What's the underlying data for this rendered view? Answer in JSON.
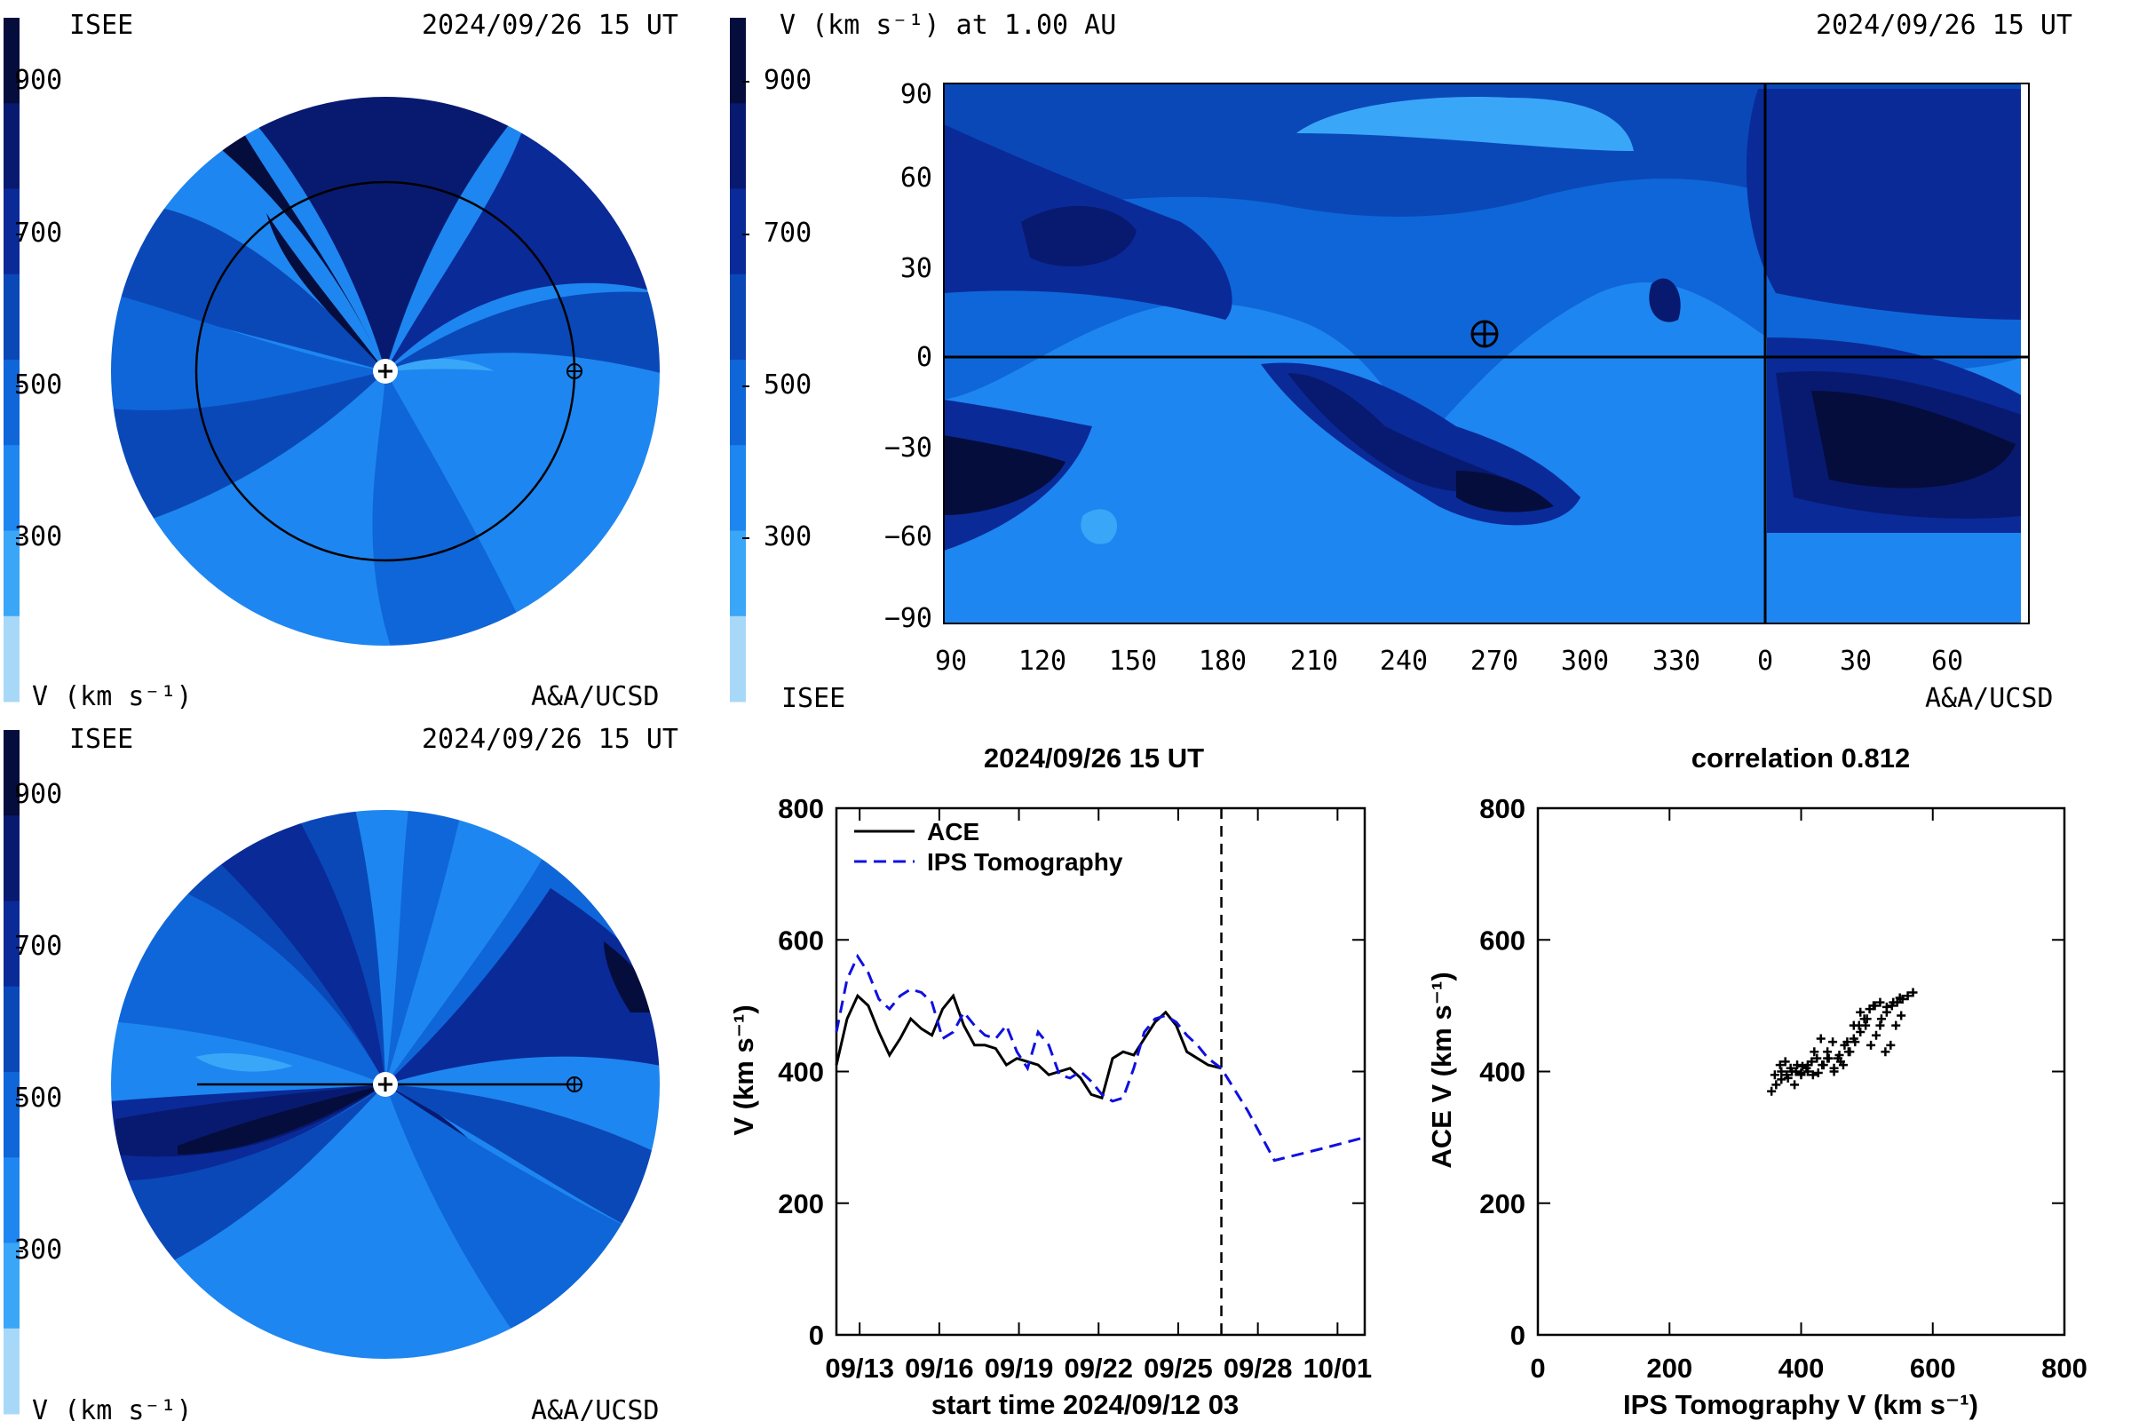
{
  "colors": {
    "scale": [
      "#a8d8f8",
      "#3aa6f8",
      "#1e86f0",
      "#0f66d8",
      "#0a48b8",
      "#0a2a98",
      "#081a70",
      "#050d3c"
    ],
    "ace": "#000000",
    "ips": "#1010e0"
  },
  "panel_tl": {
    "brand_left": "ISEE",
    "timestamp": "2024/09/26 15 UT",
    "unit_label": "V (km s⁻¹)",
    "credit": "A&A/UCSD",
    "colorbar_ticks": [
      "900",
      "700",
      "500",
      "300"
    ]
  },
  "panel_tr": {
    "title_left": "V (km s⁻¹) at 1.00 AU",
    "timestamp": "2024/09/26 15 UT",
    "colorbar_ticks": [
      "900",
      "700",
      "500",
      "300"
    ],
    "y_ticks": [
      "90",
      "60",
      "30",
      "0",
      "−30",
      "−60",
      "−90"
    ],
    "x_ticks": [
      "90",
      "120",
      "150",
      "180",
      "210",
      "240",
      "270",
      "300",
      "330",
      "0",
      "30",
      "60"
    ],
    "brand_bottom": "ISEE",
    "credit": "A&A/UCSD"
  },
  "panel_bl": {
    "brand_left": "ISEE",
    "timestamp": "2024/09/26 15 UT",
    "unit_label": "V (km s⁻¹)",
    "credit": "A&A/UCSD",
    "colorbar_ticks": [
      "900",
      "700",
      "500",
      "300"
    ]
  },
  "chart_data": [
    {
      "type": "line",
      "title": "2024/09/26 15 UT",
      "xlabel": "start time 2024/09/12 03",
      "ylabel": "V (km s⁻¹)",
      "xlim": [
        0,
        19.9
      ],
      "ylim": [
        0,
        800
      ],
      "x_ticks": [
        {
          "v": 0.875,
          "label": "09/13"
        },
        {
          "v": 3.875,
          "label": "09/16"
        },
        {
          "v": 6.875,
          "label": "09/19"
        },
        {
          "v": 9.875,
          "label": "09/22"
        },
        {
          "v": 12.875,
          "label": "09/25"
        },
        {
          "v": 15.875,
          "label": "09/28"
        },
        {
          "v": 18.875,
          "label": "10/01"
        }
      ],
      "y_ticks": [
        0,
        200,
        400,
        600,
        800
      ],
      "legend": "top-left",
      "marker_day": 14.5,
      "series": [
        {
          "name": "ACE",
          "style": "solid",
          "x": [
            0,
            0.4,
            0.8,
            1.2,
            1.6,
            2,
            2.4,
            2.8,
            3.2,
            3.6,
            4,
            4.4,
            4.8,
            5.2,
            5.6,
            6,
            6.4,
            6.8,
            7.2,
            7.6,
            8,
            8.4,
            8.8,
            9.2,
            9.6,
            10,
            10.4,
            10.8,
            11.2,
            11.6,
            12,
            12.4,
            12.8,
            13.2,
            13.6,
            14,
            14.5
          ],
          "y": [
            410,
            480,
            515,
            500,
            460,
            425,
            450,
            480,
            465,
            455,
            495,
            515,
            470,
            440,
            440,
            435,
            410,
            420,
            415,
            410,
            395,
            400,
            405,
            390,
            365,
            360,
            420,
            430,
            425,
            450,
            475,
            490,
            470,
            430,
            420,
            410,
            405
          ]
        },
        {
          "name": "IPS Tomography",
          "style": "dashed",
          "x": [
            0,
            0.4,
            0.8,
            1.2,
            1.6,
            2,
            2.4,
            2.8,
            3.2,
            3.6,
            4,
            4.4,
            4.8,
            5.2,
            5.6,
            6,
            6.4,
            6.8,
            7.2,
            7.6,
            8,
            8.4,
            8.8,
            9.2,
            9.6,
            10,
            10.4,
            10.8,
            11.2,
            11.6,
            12,
            12.4,
            12.8,
            13.2,
            13.6,
            14,
            14.5,
            15.5,
            16.5,
            17.5,
            18.5,
            19.9
          ],
          "y": [
            460,
            540,
            575,
            550,
            510,
            495,
            515,
            525,
            520,
            505,
            450,
            460,
            490,
            470,
            455,
            450,
            470,
            430,
            405,
            460,
            440,
            395,
            390,
            400,
            385,
            365,
            355,
            360,
            405,
            460,
            480,
            485,
            475,
            455,
            440,
            420,
            405,
            340,
            265,
            275,
            285,
            300
          ]
        }
      ]
    },
    {
      "type": "scatter",
      "title": "correlation 0.812",
      "xlabel": "IPS Tomography V (km s⁻¹)",
      "ylabel": "ACE V (km s⁻¹)",
      "xlim": [
        0,
        800
      ],
      "ylim": [
        0,
        800
      ],
      "x_ticks": [
        0,
        200,
        400,
        600,
        800
      ],
      "y_ticks": [
        0,
        200,
        400,
        600,
        800
      ],
      "series": [
        {
          "name": "",
          "x": [
            355,
            362,
            370,
            378,
            386,
            394,
            402,
            410,
            418,
            426,
            434,
            442,
            450,
            458,
            466,
            474,
            482,
            490,
            498,
            506,
            514,
            522,
            530,
            538,
            546,
            554,
            562,
            570,
            360,
            368,
            376,
            384,
            392,
            400,
            408,
            416,
            424,
            432,
            440,
            448,
            456,
            464,
            472,
            480,
            488,
            496,
            504,
            512,
            520,
            528,
            536,
            544,
            552,
            370,
            380,
            390,
            400,
            410,
            420,
            430,
            440,
            450,
            460,
            470,
            480,
            490,
            500,
            510,
            520,
            530,
            540,
            550
          ],
          "y": [
            370,
            380,
            388,
            395,
            400,
            410,
            408,
            400,
            395,
            398,
            410,
            420,
            405,
            425,
            440,
            430,
            445,
            460,
            470,
            440,
            455,
            480,
            490,
            500,
            505,
            510,
            515,
            520,
            395,
            410,
            415,
            405,
            400,
            398,
            405,
            415,
            420,
            410,
            430,
            445,
            420,
            410,
            430,
            450,
            470,
            480,
            495,
            500,
            470,
            430,
            440,
            470,
            485,
            400,
            390,
            380,
            395,
            410,
            430,
            450,
            420,
            400,
            415,
            445,
            470,
            490,
            480,
            500,
            505,
            498,
            505,
            512
          ]
        }
      ]
    }
  ]
}
